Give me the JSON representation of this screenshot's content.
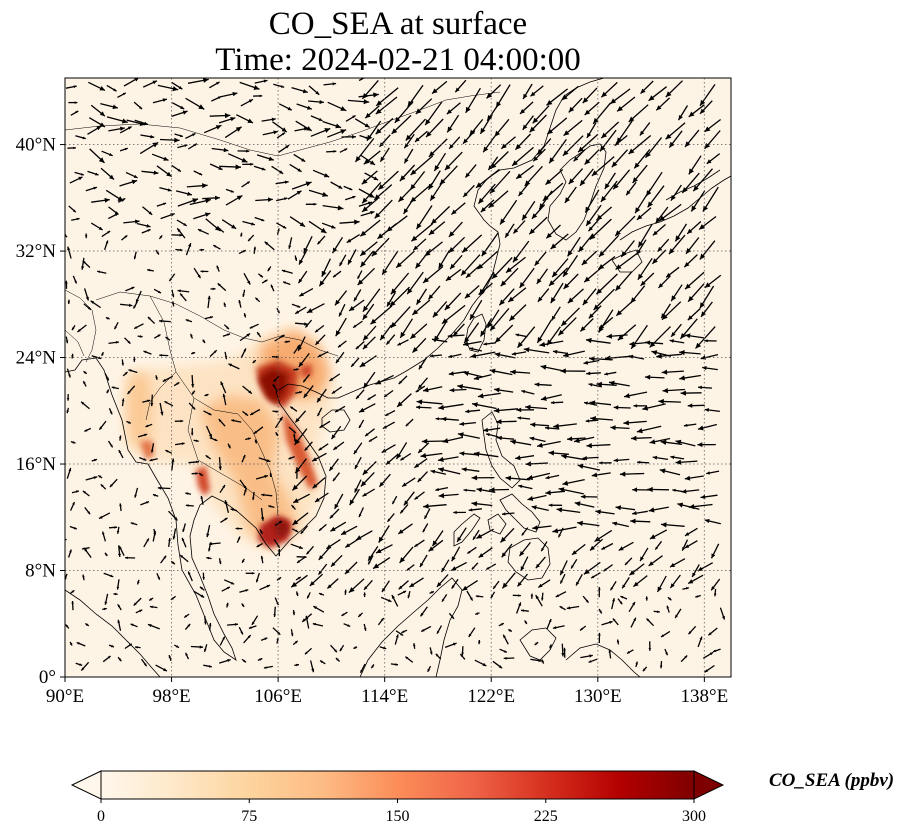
{
  "figure": {
    "title_line1": "CO_SEA at surface",
    "title_line2": "Time: 2024-02-21 04:00:00"
  },
  "map": {
    "projection": "PlateCarree",
    "lon_range": [
      90,
      140
    ],
    "lat_range": [
      0,
      45
    ],
    "gridlines": "dotted",
    "lon_ticks": [
      {
        "value": 90,
        "label": "90°E"
      },
      {
        "value": 98,
        "label": "98°E"
      },
      {
        "value": 106,
        "label": "106°E"
      },
      {
        "value": 114,
        "label": "114°E"
      },
      {
        "value": 122,
        "label": "122°E"
      },
      {
        "value": 130,
        "label": "130°E"
      },
      {
        "value": 138,
        "label": "138°E"
      }
    ],
    "lat_ticks": [
      {
        "value": 0,
        "label": "0°"
      },
      {
        "value": 8,
        "label": "8°N"
      },
      {
        "value": 16,
        "label": "16°N"
      },
      {
        "value": 24,
        "label": "24°N"
      },
      {
        "value": 32,
        "label": "32°N"
      },
      {
        "value": 40,
        "label": "40°N"
      }
    ],
    "field_colors": {
      "background": "#fef4e6",
      "low": "#fdd8ae",
      "mid": "#f4a060",
      "high": "#d7472a",
      "max": "#8c1008",
      "coast": "#000000",
      "wind_vector": "#000000"
    }
  },
  "colorbar": {
    "label": "CO_SEA (ppbv)",
    "range": [
      0,
      300
    ],
    "extend": "both",
    "colormap": "OrRd",
    "ticks": [
      {
        "value": 0,
        "label": "0"
      },
      {
        "value": 75,
        "label": "75"
      },
      {
        "value": 150,
        "label": "150"
      },
      {
        "value": 225,
        "label": "225"
      },
      {
        "value": 300,
        "label": "300"
      }
    ]
  }
}
